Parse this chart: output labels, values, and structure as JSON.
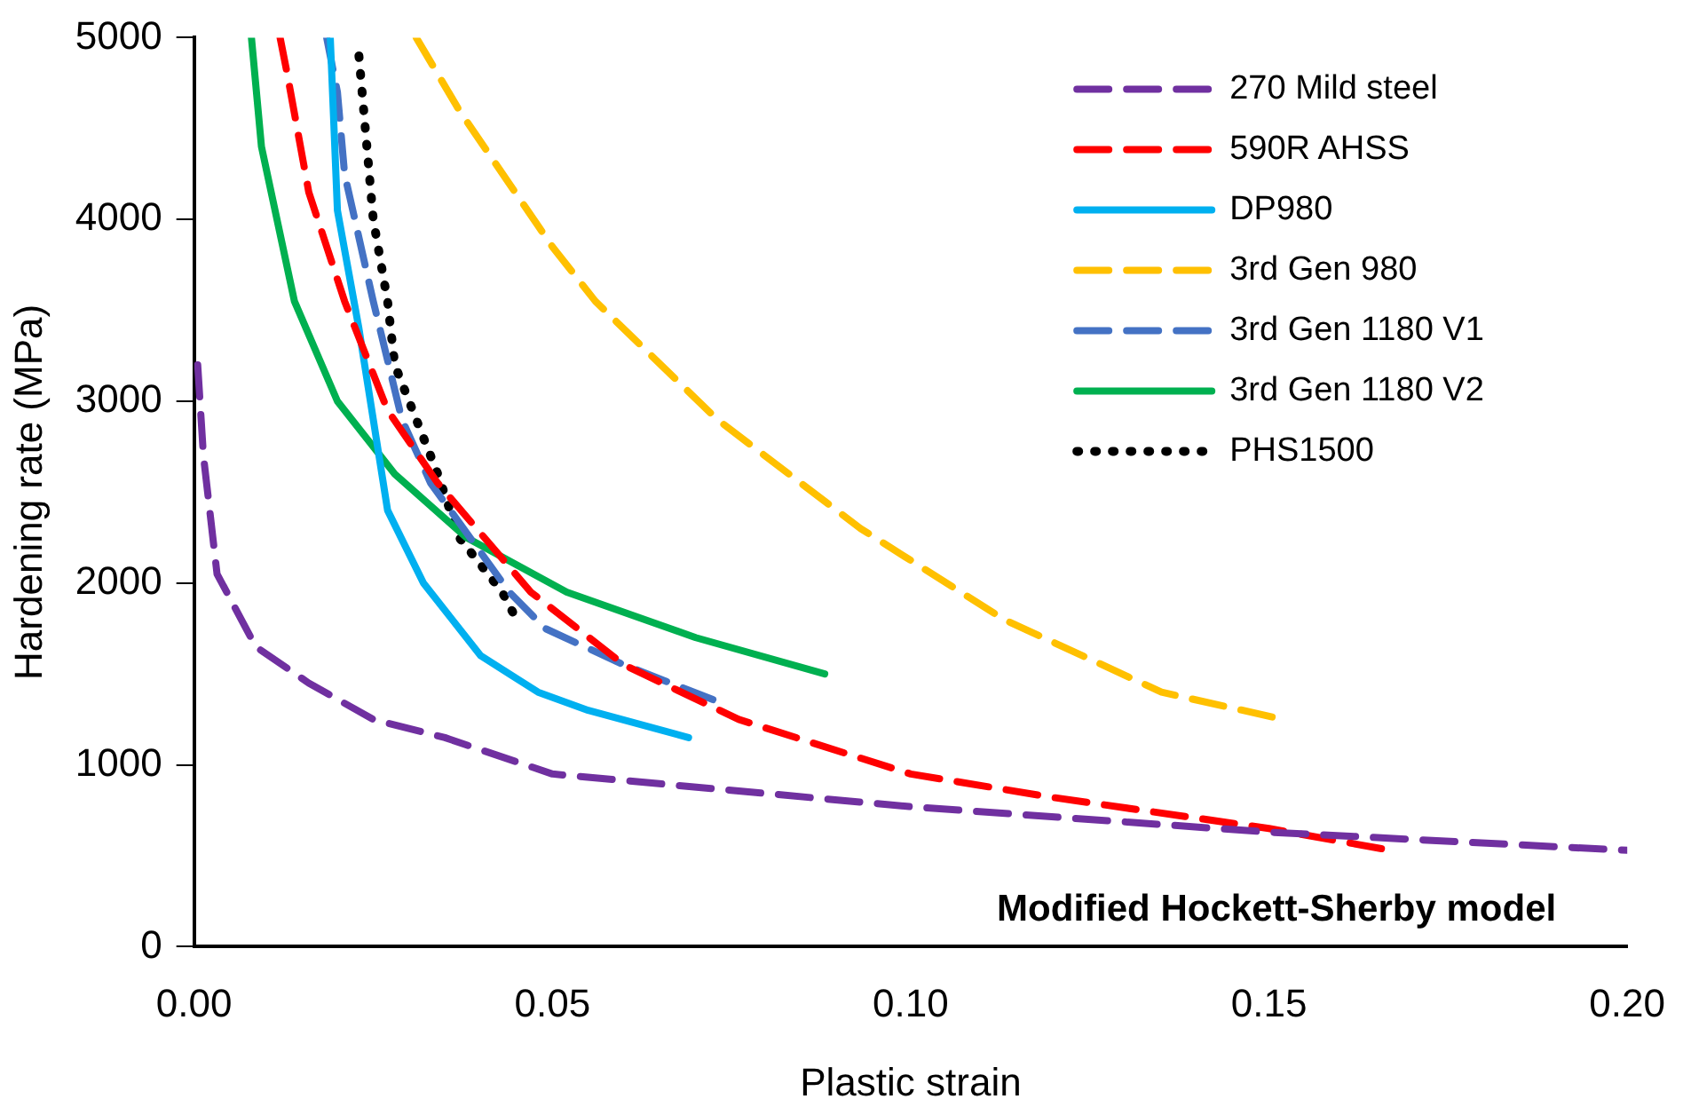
{
  "chart_data": {
    "type": "line",
    "xlabel": "Plastic strain",
    "ylabel": "Hardening rate (MPa)",
    "xlim": [
      0,
      0.2
    ],
    "ylim": [
      0,
      5000
    ],
    "xticks": [
      {
        "value": 0,
        "label": "0.00"
      },
      {
        "value": 0.05,
        "label": "0.05"
      },
      {
        "value": 0.1,
        "label": "0.10"
      },
      {
        "value": 0.15,
        "label": "0.15"
      },
      {
        "value": 0.2,
        "label": "0.20"
      }
    ],
    "yticks": [
      0,
      1000,
      2000,
      3000,
      4000,
      5000
    ],
    "grid": false,
    "legend": "top right",
    "marker": "none",
    "annotations": [
      "Modified Hockett-Sherby model"
    ],
    "series": [
      {
        "name": "270 Mild steel",
        "color": "#7030a0",
        "line_style": "dashed",
        "x": [
          0.0005,
          0.0013,
          0.0032,
          0.0086,
          0.016,
          0.025,
          0.035,
          0.05,
          0.1,
          0.15,
          0.2
        ],
        "values": [
          3200,
          2700,
          2050,
          1650,
          1450,
          1250,
          1150,
          950,
          770,
          630,
          530
        ]
      },
      {
        "name": "590R AHSS",
        "color": "#ff0000",
        "line_style": "dashed",
        "x": [
          0.012,
          0.013,
          0.016,
          0.021,
          0.027,
          0.034,
          0.047,
          0.06,
          0.076,
          0.092,
          0.1,
          0.12,
          0.15,
          0.167
        ],
        "values": [
          5000,
          4800,
          4150,
          3550,
          2950,
          2550,
          1950,
          1550,
          1250,
          1050,
          950,
          820,
          650,
          530
        ]
      },
      {
        "name": "DP980",
        "color": "#00b0f0",
        "line_style": "solid",
        "x": [
          0.019,
          0.02,
          0.023,
          0.025,
          0.027,
          0.032,
          0.04,
          0.048,
          0.055,
          0.069
        ],
        "values": [
          5000,
          4050,
          3400,
          2900,
          2400,
          2000,
          1600,
          1400,
          1300,
          1150
        ]
      },
      {
        "name": "3rd Gen 980",
        "color": "#ffc000",
        "line_style": "dashed",
        "x": [
          0.031,
          0.037,
          0.05,
          0.056,
          0.073,
          0.093,
          0.113,
          0.135,
          0.152
        ],
        "values": [
          5000,
          4600,
          3850,
          3550,
          2900,
          2300,
          1800,
          1400,
          1250
        ]
      },
      {
        "name": "3rd Gen 1180 V1",
        "color": "#4472c4",
        "line_style": "dashed",
        "x": [
          0.0185,
          0.02,
          0.021,
          0.025,
          0.029,
          0.033,
          0.044,
          0.049,
          0.06,
          0.073
        ],
        "values": [
          5000,
          4700,
          4250,
          3550,
          2900,
          2550,
          1950,
          1750,
          1550,
          1350
        ]
      },
      {
        "name": "3rd Gen 1180 V2",
        "color": "#00b050",
        "line_style": "solid",
        "x": [
          0.008,
          0.0094,
          0.014,
          0.02,
          0.028,
          0.038,
          0.052,
          0.07,
          0.088
        ],
        "values": [
          5000,
          4400,
          3550,
          3000,
          2600,
          2250,
          1950,
          1700,
          1500
        ]
      },
      {
        "name": "PHS1500",
        "color": "#000000",
        "line_style": "dotted",
        "x": [
          0.023,
          0.025,
          0.027,
          0.028,
          0.031,
          0.034,
          0.037,
          0.043,
          0.045
        ],
        "values": [
          4900,
          4000,
          3550,
          3200,
          2900,
          2600,
          2250,
          1950,
          1800
        ]
      }
    ]
  }
}
